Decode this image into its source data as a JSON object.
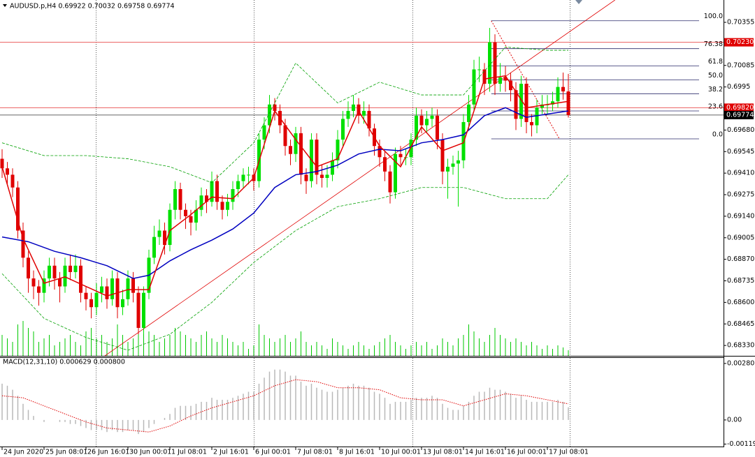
{
  "chart_data": [
    {
      "type": "candlestick",
      "title": "AUDUSD.p,H4  0.69922 0.70032 0.69758 0.69774",
      "xlim": [
        -0.4,
        137.6
      ],
      "xticks": [
        {
          "value": 0,
          "label": "24 Jun 2020"
        },
        {
          "value": 8,
          "label": "25 Jun 08:01"
        },
        {
          "value": 16,
          "label": "26 Jun 16:01"
        },
        {
          "value": 24,
          "label": "30 Jun 00:01"
        },
        {
          "value": 32,
          "label": "1 Jul 08:01"
        },
        {
          "value": 40,
          "label": "2 Jul 16:01"
        },
        {
          "value": 48,
          "label": "6 Jul 00:01"
        },
        {
          "value": 56,
          "label": "7 Jul 08:01"
        },
        {
          "value": 64,
          "label": "8 Jul 16:01"
        },
        {
          "value": 72,
          "label": "10 Jul 00:01"
        },
        {
          "value": 80,
          "label": "13 Jul 08:01"
        },
        {
          "value": 88,
          "label": "14 Jul 16:01"
        },
        {
          "value": 96,
          "label": "16 Jul 00:01"
        },
        {
          "value": 104,
          "label": "17 Jul 08:01"
        }
      ],
      "ylim": [
        0.68265,
        0.70495
      ],
      "yticks": [
        0.70355,
        0.70085,
        0.6995,
        {
          "value": 0.6968,
          "label": "0.69680"
        },
        0.69545,
        {
          "value": 0.6941,
          "label": "0.69410"
        },
        0.69275,
        {
          "value": 0.6914,
          "label": "0.69140"
        },
        0.69005,
        {
          "value": 0.6887,
          "label": "0.68870"
        },
        0.68735,
        {
          "value": 0.686,
          "label": "0.68600"
        },
        0.68465,
        {
          "value": 0.6833,
          "label": "0.68330"
        }
      ],
      "up_color": "#00e000",
      "down_color": "#e00000",
      "open": [
        0.695,
        0.6944,
        0.694,
        0.6932,
        0.6905,
        0.6888,
        0.6875,
        0.687,
        0.6866,
        0.6875,
        0.6883,
        0.6875,
        0.687,
        0.6883,
        0.6879,
        0.6883,
        0.6866,
        0.6862,
        0.6857,
        0.6866,
        0.687,
        0.6862,
        0.6875,
        0.6857,
        0.6862,
        0.6875,
        0.6866,
        0.6844,
        0.6866,
        0.6888,
        0.6901,
        0.6905,
        0.6896,
        0.6918,
        0.6931,
        0.6918,
        0.6914,
        0.691,
        0.6918,
        0.6927,
        0.6923,
        0.6936,
        0.6923,
        0.6918,
        0.6923,
        0.6931,
        0.6936,
        0.694,
        0.694,
        0.6936,
        0.6962,
        0.6971,
        0.6984,
        0.698,
        0.6971,
        0.6958,
        0.6953,
        0.6966,
        0.694,
        0.6936,
        0.6962,
        0.694,
        0.6938,
        0.694,
        0.6949,
        0.6962,
        0.6975,
        0.698,
        0.6984,
        0.6977,
        0.698,
        0.6969,
        0.6958,
        0.6951,
        0.6942,
        0.6929,
        0.6953,
        0.6951,
        0.6951,
        0.6962,
        0.6977,
        0.6971,
        0.6975,
        0.6977,
        0.6962,
        0.6942,
        0.6945,
        0.6947,
        0.6949,
        0.6973,
        0.6984,
        0.7006,
        0.7006,
        0.6997,
        0.7023,
        0.6997,
        0.7001,
        0.6999,
        0.6993,
        0.6975,
        0.6997,
        0.6973,
        0.6971,
        0.6982,
        0.6984,
        0.6984,
        0.6986,
        0.6995,
        0.69922
      ],
      "high": [
        0.6956,
        0.6948,
        0.6944,
        0.6936,
        0.691,
        0.6892,
        0.688,
        0.6874,
        0.688,
        0.6888,
        0.6888,
        0.6879,
        0.6888,
        0.689,
        0.689,
        0.6887,
        0.687,
        0.6866,
        0.6872,
        0.6876,
        0.6875,
        0.688,
        0.6879,
        0.6868,
        0.688,
        0.6879,
        0.687,
        0.687,
        0.6893,
        0.6908,
        0.6912,
        0.691,
        0.6922,
        0.6936,
        0.6935,
        0.6922,
        0.6918,
        0.6924,
        0.6932,
        0.6931,
        0.6942,
        0.694,
        0.6927,
        0.6928,
        0.6936,
        0.694,
        0.6944,
        0.6945,
        0.6944,
        0.6966,
        0.6976,
        0.699,
        0.6988,
        0.6984,
        0.6975,
        0.6962,
        0.697,
        0.697,
        0.6944,
        0.6966,
        0.6966,
        0.6946,
        0.6946,
        0.6954,
        0.6968,
        0.698,
        0.6986,
        0.699,
        0.6988,
        0.6986,
        0.6984,
        0.6972,
        0.6962,
        0.6955,
        0.6946,
        0.6957,
        0.6958,
        0.6956,
        0.6966,
        0.6982,
        0.6981,
        0.698,
        0.6982,
        0.6981,
        0.6966,
        0.695,
        0.6952,
        0.6955,
        0.6978,
        0.699,
        0.7012,
        0.7014,
        0.701,
        0.7032,
        0.7028,
        0.701,
        0.7008,
        0.7004,
        0.6998,
        0.7002,
        0.7001,
        0.6978,
        0.6987,
        0.699,
        0.699,
        0.6992,
        0.7001,
        0.7004,
        0.70032
      ],
      "low": [
        0.6938,
        0.6934,
        0.6926,
        0.69,
        0.6882,
        0.6866,
        0.6862,
        0.6858,
        0.686,
        0.687,
        0.6868,
        0.686,
        0.6866,
        0.6874,
        0.6875,
        0.686,
        0.6855,
        0.685,
        0.6852,
        0.686,
        0.6856,
        0.6858,
        0.685,
        0.6852,
        0.6858,
        0.686,
        0.684,
        0.684,
        0.6862,
        0.6884,
        0.6896,
        0.689,
        0.6892,
        0.6912,
        0.6912,
        0.6906,
        0.6902,
        0.6905,
        0.6914,
        0.6916,
        0.692,
        0.6918,
        0.6912,
        0.6914,
        0.6918,
        0.6926,
        0.6932,
        0.6934,
        0.693,
        0.6932,
        0.6956,
        0.6966,
        0.6974,
        0.6966,
        0.6952,
        0.6946,
        0.6948,
        0.6934,
        0.6928,
        0.6932,
        0.6934,
        0.6932,
        0.6932,
        0.6936,
        0.6944,
        0.6958,
        0.697,
        0.6976,
        0.6972,
        0.6972,
        0.6964,
        0.6952,
        0.6945,
        0.6936,
        0.6922,
        0.6925,
        0.6946,
        0.6946,
        0.6946,
        0.6958,
        0.6966,
        0.6966,
        0.697,
        0.6956,
        0.6934,
        0.6925,
        0.694,
        0.692,
        0.6944,
        0.6968,
        0.698,
        0.6998,
        0.699,
        0.6992,
        0.699,
        0.6992,
        0.6992,
        0.6986,
        0.6968,
        0.697,
        0.6966,
        0.6964,
        0.6966,
        0.6978,
        0.6978,
        0.698,
        0.6982,
        0.6987,
        0.69758
      ],
      "close": [
        0.6944,
        0.694,
        0.6932,
        0.6905,
        0.6888,
        0.6875,
        0.687,
        0.6866,
        0.6875,
        0.6883,
        0.6875,
        0.687,
        0.6883,
        0.6879,
        0.6883,
        0.6866,
        0.6862,
        0.6857,
        0.6866,
        0.687,
        0.6862,
        0.6875,
        0.6857,
        0.6862,
        0.6875,
        0.6866,
        0.6844,
        0.6866,
        0.6888,
        0.6901,
        0.6905,
        0.6896,
        0.6918,
        0.6931,
        0.6918,
        0.6914,
        0.691,
        0.6918,
        0.6927,
        0.6923,
        0.6936,
        0.6923,
        0.6918,
        0.6923,
        0.6931,
        0.6936,
        0.694,
        0.694,
        0.6936,
        0.6962,
        0.6971,
        0.6984,
        0.698,
        0.6971,
        0.6958,
        0.6953,
        0.6966,
        0.694,
        0.6936,
        0.6962,
        0.694,
        0.6938,
        0.694,
        0.6949,
        0.6962,
        0.6975,
        0.698,
        0.6984,
        0.6977,
        0.698,
        0.6969,
        0.6958,
        0.6951,
        0.6942,
        0.6929,
        0.6953,
        0.6951,
        0.6951,
        0.6962,
        0.6977,
        0.6971,
        0.6975,
        0.6977,
        0.6962,
        0.6942,
        0.6945,
        0.6947,
        0.6949,
        0.6973,
        0.6984,
        0.7006,
        0.7006,
        0.6997,
        0.7023,
        0.6997,
        0.7001,
        0.6999,
        0.6993,
        0.6975,
        0.6997,
        0.6973,
        0.6971,
        0.6982,
        0.6984,
        0.6984,
        0.6986,
        0.6995,
        0.69922,
        0.69774
      ],
      "volume_color": "#00c800",
      "volume": [
        30,
        25,
        20,
        45,
        50,
        40,
        35,
        20,
        25,
        30,
        15,
        20,
        25,
        30,
        20,
        15,
        35,
        40,
        25,
        30,
        20,
        25,
        45,
        30,
        20,
        25,
        50,
        40,
        35,
        30,
        20,
        25,
        30,
        40,
        35,
        30,
        25,
        20,
        30,
        35,
        25,
        20,
        30,
        25,
        20,
        15,
        20,
        10,
        15,
        45,
        30,
        25,
        20,
        25,
        30,
        20,
        25,
        35,
        20,
        15,
        20,
        15,
        10,
        25,
        20,
        15,
        10,
        15,
        20,
        15,
        10,
        15,
        20,
        25,
        30,
        20,
        15,
        10,
        15,
        20,
        15,
        20,
        10,
        15,
        25,
        20,
        15,
        25,
        30,
        45,
        35,
        25,
        20,
        30,
        40,
        30,
        25,
        20,
        25,
        20,
        15,
        20,
        15,
        10,
        15,
        10,
        15,
        12,
        8
      ],
      "lines": [
        {
          "color": "#00a000",
          "dash": true,
          "x": [
            0,
            8,
            16,
            24,
            32,
            40,
            48,
            56,
            64,
            72,
            80,
            88,
            96,
            104,
            108
          ],
          "values": [
            0.696,
            0.6952,
            0.6952,
            0.695,
            0.6945,
            0.6935,
            0.696,
            0.701,
            0.6985,
            0.6998,
            0.699,
            0.699,
            0.702,
            0.7018,
            0.7018
          ]
        },
        {
          "color": "#00a000",
          "dash": true,
          "x": [
            0,
            8,
            16,
            24,
            32,
            40,
            48,
            56,
            64,
            72,
            80,
            88,
            96,
            104,
            108
          ],
          "values": [
            0.6878,
            0.685,
            0.6838,
            0.683,
            0.684,
            0.686,
            0.6885,
            0.6905,
            0.692,
            0.6925,
            0.6932,
            0.6932,
            0.6925,
            0.6925,
            0.694
          ]
        },
        {
          "color": "#0000c0",
          "dash": false,
          "x": [
            0,
            5,
            10,
            15,
            20,
            25,
            28,
            32,
            36,
            40,
            44,
            48,
            52,
            56,
            60,
            64,
            68,
            72,
            76,
            80,
            84,
            88,
            92,
            96,
            100,
            104,
            108
          ],
          "values": [
            0.6901,
            0.6898,
            0.6892,
            0.6888,
            0.6883,
            0.6875,
            0.6877,
            0.6886,
            0.6893,
            0.6899,
            0.6906,
            0.6916,
            0.6932,
            0.694,
            0.6942,
            0.6946,
            0.6953,
            0.6956,
            0.6955,
            0.696,
            0.6962,
            0.6965,
            0.6977,
            0.6982,
            0.6976,
            0.6978,
            0.698
          ]
        },
        {
          "color": "#e00000",
          "dash": false,
          "x": [
            0,
            4,
            8,
            12,
            16,
            20,
            24,
            28,
            32,
            36,
            40,
            44,
            48,
            52,
            56,
            60,
            64,
            68,
            72,
            76,
            80,
            84,
            88,
            92,
            96,
            100,
            104,
            108
          ],
          "values": [
            0.6945,
            0.69,
            0.6872,
            0.6876,
            0.687,
            0.6864,
            0.6868,
            0.6868,
            0.6905,
            0.6915,
            0.6926,
            0.6925,
            0.6938,
            0.698,
            0.6962,
            0.6945,
            0.695,
            0.698,
            0.6958,
            0.6945,
            0.697,
            0.6955,
            0.696,
            0.7,
            0.7002,
            0.6982,
            0.6984,
            0.6986
          ]
        }
      ],
      "hlines": [
        {
          "value": 0.7023,
          "label": "0.70230",
          "color": "#e00000"
        },
        {
          "value": 0.6982,
          "label": "0.69820",
          "color": "#e00000"
        },
        {
          "value": 0.69774,
          "color": "#000000"
        }
      ],
      "trendline": {
        "color": "#e00000",
        "x": [
          19.6,
          116.9
        ],
        "values": [
          0.68265,
          0.70495
        ]
      },
      "fibo": {
        "color": "#2a2a6a",
        "x": [
          93.3,
          106.3
        ],
        "high": 0.70365,
        "low": 0.69625,
        "levels": [
          {
            "value": 100,
            "label": "100.0"
          },
          76.38,
          61.8,
          {
            "value": 50,
            "label": "50.0"
          },
          38.2,
          23.6,
          {
            "value": 0,
            "label": "0.0"
          }
        ]
      }
    },
    {
      "type": "bar",
      "title": "MACD(12,31,10) 0.000629 0.000800",
      "color": "#b8b8b8",
      "values": [
        0.0018,
        0.0017,
        0.0015,
        0.0012,
        0.0008,
        0.0005,
        0.0002,
        0.0,
        -0.0001,
        0.0,
        0.0,
        -0.0001,
        -0.0001,
        -0.0002,
        -0.0002,
        -0.0003,
        -0.0004,
        -0.0005,
        -0.0005,
        -0.0005,
        -0.0006,
        -0.0005,
        -0.0006,
        -0.0006,
        -0.0005,
        -0.0005,
        -0.0007,
        -0.0006,
        -0.0004,
        -0.0002,
        0.0,
        0.0001,
        0.0003,
        0.0006,
        0.0007,
        0.0007,
        0.0007,
        0.0008,
        0.0009,
        0.0009,
        0.0011,
        0.001,
        0.001,
        0.001,
        0.0011,
        0.0012,
        0.0013,
        0.0014,
        0.0014,
        0.0018,
        0.0021,
        0.0024,
        0.0025,
        0.0025,
        0.0024,
        0.0022,
        0.0022,
        0.0019,
        0.0017,
        0.0018,
        0.0016,
        0.0015,
        0.0014,
        0.0014,
        0.0015,
        0.0016,
        0.0017,
        0.0018,
        0.0017,
        0.0017,
        0.0016,
        0.0014,
        0.0013,
        0.0011,
        0.0008,
        0.0009,
        0.0009,
        0.0009,
        0.001,
        0.0011,
        0.0011,
        0.0011,
        0.0012,
        0.0011,
        0.0008,
        0.0006,
        0.0005,
        0.0005,
        0.0007,
        0.0009,
        0.0012,
        0.0014,
        0.0014,
        0.0016,
        0.0015,
        0.0015,
        0.0014,
        0.0013,
        0.0011,
        0.0012,
        0.001,
        0.0009,
        0.0009,
        0.0009,
        0.0009,
        0.0009,
        0.001,
        0.0009,
        0.000629
      ],
      "signal": {
        "color": "#e00000",
        "x": [
          0,
          4,
          8,
          12,
          16,
          20,
          24,
          28,
          32,
          36,
          40,
          44,
          48,
          52,
          56,
          60,
          64,
          68,
          72,
          76,
          80,
          84,
          88,
          92,
          96,
          100,
          104,
          108
        ],
        "values": [
          0.0012,
          0.0011,
          0.0007,
          0.0003,
          -0.0001,
          -0.0004,
          -0.0005,
          -0.0006,
          -0.0003,
          0.0002,
          0.0006,
          0.0009,
          0.0012,
          0.0017,
          0.002,
          0.0019,
          0.0016,
          0.0016,
          0.0015,
          0.0011,
          0.001,
          0.001,
          0.0007,
          0.001,
          0.0013,
          0.0012,
          0.001,
          0.0008
        ]
      },
      "ylim": [
        -0.00132,
        0.00308
      ],
      "yticks": [
        0.002805,
        {
          "value": 0,
          "label": "0.00"
        },
        -0.001198
      ]
    }
  ]
}
